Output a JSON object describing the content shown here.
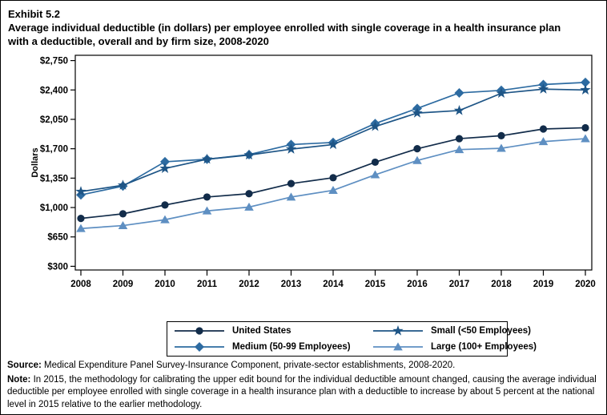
{
  "page": {
    "exhibit_label": "Exhibit 5.2",
    "title_lines": [
      "Average individual deductible (in dollars) per employee enrolled with single coverage in a health insurance plan",
      "with a deductible, overall and by firm size, 2008-2020"
    ]
  },
  "chart_data": {
    "type": "line",
    "title": "Average individual deductible (in dollars) per employee enrolled with single coverage in a health insurance plan with a deductible, overall and by firm size, 2008-2020",
    "xlabel": "",
    "ylabel": "Dollars",
    "x": [
      2008,
      2009,
      2010,
      2011,
      2012,
      2013,
      2014,
      2015,
      2016,
      2017,
      2018,
      2019,
      2020
    ],
    "ylim": [
      300,
      2750
    ],
    "y_ticks": [
      300,
      650,
      1000,
      1350,
      1700,
      2050,
      2400,
      2750
    ],
    "y_tick_prefix": "$",
    "grid": false,
    "legend_position": "bottom",
    "series": [
      {
        "name": "United States",
        "marker": "circle",
        "color": "#122C4A",
        "values": [
          870,
          925,
          1030,
          1125,
          1165,
          1285,
          1355,
          1540,
          1700,
          1820,
          1855,
          1935,
          1950
        ]
      },
      {
        "name": "Medium (50-99 Employees)",
        "marker": "diamond",
        "color": "#2D6BA1",
        "values": [
          1150,
          1255,
          1545,
          1575,
          1630,
          1750,
          1775,
          2000,
          2180,
          2365,
          2395,
          2465,
          2490
        ]
      },
      {
        "name": "Small (<50 Employees)",
        "marker": "star",
        "color": "#1E5586",
        "values": [
          1190,
          1265,
          1465,
          1575,
          1625,
          1695,
          1750,
          1965,
          2125,
          2155,
          2360,
          2410,
          2400
        ]
      },
      {
        "name": "Large (100+ Employees)",
        "marker": "triangle",
        "color": "#5E8FC2",
        "values": [
          750,
          785,
          855,
          960,
          1005,
          1125,
          1205,
          1390,
          1560,
          1690,
          1705,
          1785,
          1820
        ]
      }
    ]
  },
  "legend": {
    "order": [
      0,
      2,
      1,
      3
    ]
  },
  "footnotes": {
    "source_label": "Source:",
    "source_text": " Medical Expenditure Panel Survey-Insurance Component, private-sector establishments, 2008-2020.",
    "note_label": "Note:",
    "note_text": " In 2015, the methodology for calibrating the upper edit bound for the individual deductible amount changed, causing the average individual deductible per employee enrolled with single coverage in a health insurance plan with a deductible to increase by about 5 percent at the national level in 2015 relative to the earlier methodology."
  }
}
